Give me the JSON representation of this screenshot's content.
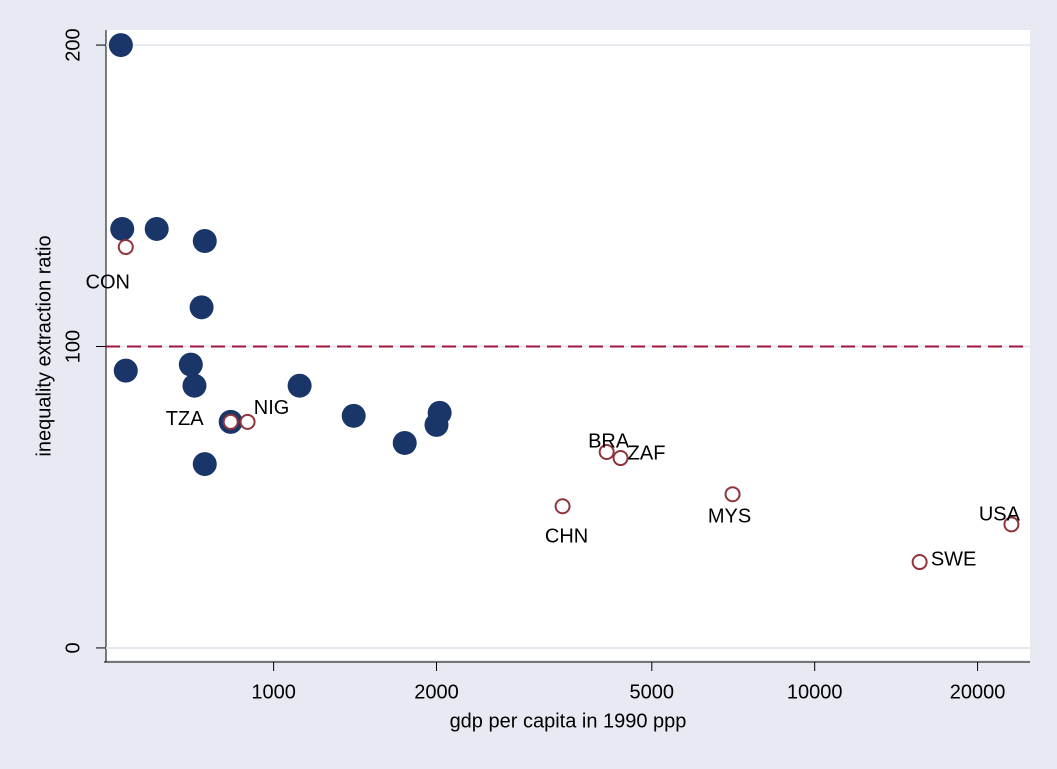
{
  "chart_data": {
    "type": "scatter",
    "x_label": "gdp per capita in 1990 ppp",
    "y_label": "inequality extraction ratio",
    "x_log": true,
    "xlim": [
      490,
      25000
    ],
    "xticks": [
      1000,
      2000,
      5000,
      10000,
      20000
    ],
    "ylim": [
      -4,
      205
    ],
    "yticks": [
      0,
      100,
      200
    ],
    "grid": true,
    "reference_line": {
      "value": 100,
      "color": "#a0153e"
    },
    "series": [
      {
        "marker": "filled",
        "color": "#1a3668",
        "x": [
          522,
          525,
          608,
          746,
          736,
          533,
          703,
          714,
          1117,
          833,
          746,
          1406,
          1747,
          2000,
          2027
        ],
        "y": [
          200,
          139,
          139,
          135,
          113,
          92,
          94,
          87,
          87,
          75,
          61,
          77,
          68,
          74,
          78
        ]
      },
      {
        "marker": "hollow",
        "color": "#90353b",
        "x": [
          533,
          895,
          833,
          3420,
          4126,
          4377,
          7050,
          15630,
          23100
        ],
        "y": [
          133,
          75,
          75,
          47,
          65,
          63,
          51,
          28.5,
          41
        ],
        "labels": [
          "CON",
          "NIG",
          "TZA",
          "CHN",
          "BRA",
          "ZAF",
          "MYS",
          "SWE",
          "USA"
        ]
      }
    ]
  }
}
